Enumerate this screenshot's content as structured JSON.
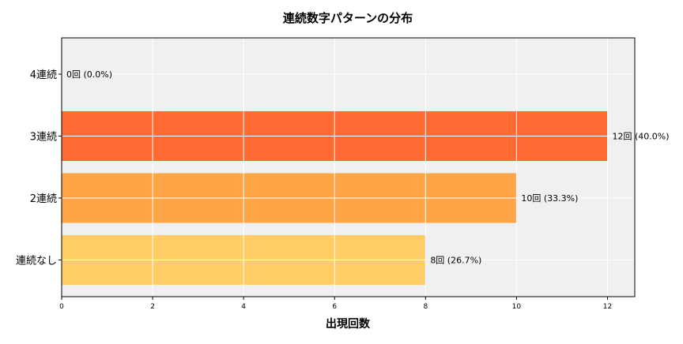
{
  "chart_data": {
    "type": "bar",
    "orientation": "horizontal",
    "title": "連続数字パターンの分布",
    "xlabel": "出現回数",
    "ylabel": "",
    "categories": [
      "4連続",
      "3連続",
      "2連続",
      "連続なし"
    ],
    "values": [
      0,
      12,
      10,
      8
    ],
    "data_labels": [
      "0回 (0.0%)",
      "12回 (40.0%)",
      "10回 (33.3%)",
      "8回 (26.7%)"
    ],
    "colors": [
      "#FF6B35",
      "#FF6B35",
      "#FFA447",
      "#FFCC66"
    ],
    "xlim": [
      0,
      12.6
    ],
    "xticks": [
      0,
      2,
      4,
      6,
      8,
      10,
      12
    ],
    "grid": true,
    "background": "#F0F0F0"
  }
}
